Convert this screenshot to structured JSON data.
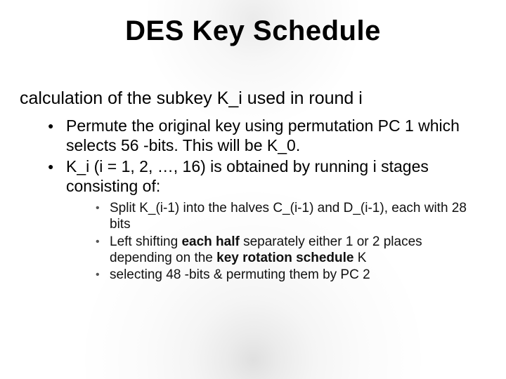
{
  "title": "DES Key Schedule",
  "lvl1": "calculation of  the subkey K_i used in round i",
  "lvl2": [
    "Permute the original key  using permutation PC 1 which selects 56 -bits. This will be K_0.",
    "K_i (i = 1, 2, …, 16) is obtained by running i stages consisting of:"
  ],
  "lvl3": [
    {
      "pre": "Split K_(i-1) into the halves C_(i-1) and D_(i-1), each with 28 bits",
      "bold": "",
      "post": ""
    },
    {
      "pre": "Left shifting ",
      "bold": "each half",
      "mid": " separately either 1 or 2 places depending on the ",
      "bold2": "key rotation schedule",
      "post": " K"
    },
    {
      "pre": "selecting 48 -bits & permuting them by PC 2",
      "bold": "",
      "post": ""
    }
  ],
  "style": {
    "title_fontsize": 40,
    "lvl1_fontsize": 25,
    "lvl2_fontsize": 23,
    "lvl3_fontsize": 19,
    "text_color": "#000000",
    "lvl3_bullet_color": "#555555",
    "background_color": "#ffffff"
  }
}
